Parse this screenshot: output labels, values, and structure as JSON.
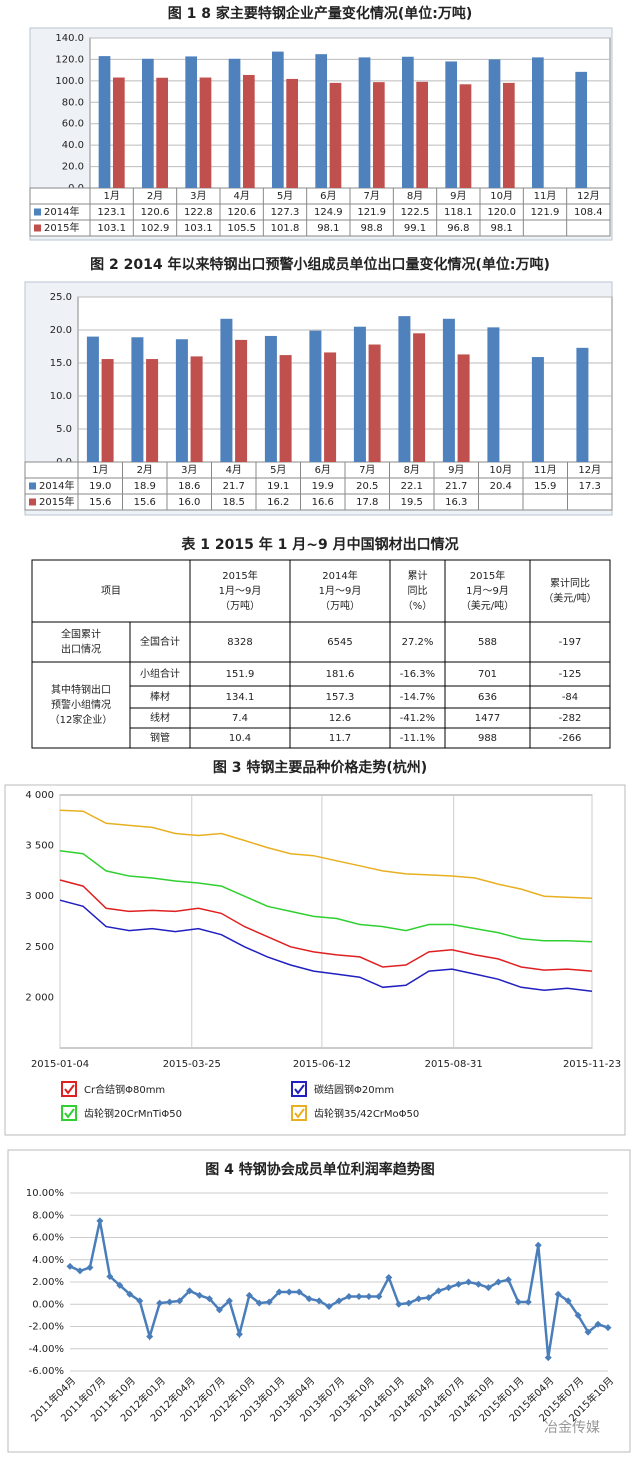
{
  "chart_data": [
    {
      "type": "bar",
      "title": "图 1 8 家主要特钢企业产量变化情况(单位:万吨)",
      "categories": [
        "1月",
        "2月",
        "3月",
        "4月",
        "5月",
        "6月",
        "7月",
        "8月",
        "9月",
        "10月",
        "11月",
        "12月"
      ],
      "series": [
        {
          "name": "2014年",
          "color": "#4f81bd",
          "values": [
            123.1,
            120.6,
            122.8,
            120.6,
            127.3,
            124.9,
            121.9,
            122.5,
            118.1,
            120.0,
            121.9,
            108.4
          ],
          "value_labels": [
            "123.1",
            "120.6",
            "122.8",
            "120.6",
            "127.3",
            "124.9",
            "121.9",
            "122.5",
            "118.1",
            "120.0",
            "121.9",
            "108.4"
          ]
        },
        {
          "name": "2015年",
          "color": "#c0504d",
          "values": [
            103.1,
            102.9,
            103.1,
            105.5,
            101.8,
            98.1,
            98.8,
            99.1,
            96.8,
            98.1,
            null,
            null
          ],
          "value_labels": [
            "103.1",
            "102.9",
            "103.1",
            "105.5",
            "101.8",
            "98.1",
            "98.8",
            "99.1",
            "96.8",
            "98.1",
            null,
            null
          ]
        }
      ],
      "ylim": [
        0,
        140
      ],
      "yticks": [
        {
          "value": 0,
          "label": "0.0"
        },
        {
          "value": 20,
          "label": "20.0"
        },
        {
          "value": 40,
          "label": "40.0"
        },
        {
          "value": 60,
          "label": "60.0"
        },
        {
          "value": 80,
          "label": "80.0"
        },
        {
          "value": 100,
          "label": "100.0"
        },
        {
          "value": 120,
          "label": "120.0"
        },
        {
          "value": 140,
          "label": "140.0"
        }
      ],
      "grid": true
    },
    {
      "type": "bar",
      "title": "图 2 2014 年以来特钢出口预警小组成员单位出口量变化情况(单位:万吨)",
      "categories": [
        "1月",
        "2月",
        "3月",
        "4月",
        "5月",
        "6月",
        "7月",
        "8月",
        "9月",
        "10月",
        "11月",
        "12月"
      ],
      "series": [
        {
          "name": "2014年",
          "color": "#4f81bd",
          "values": [
            19.0,
            18.9,
            18.6,
            21.7,
            19.1,
            19.9,
            20.5,
            22.1,
            21.7,
            20.4,
            15.9,
            17.3
          ],
          "value_labels": [
            "19.0",
            "18.9",
            "18.6",
            "21.7",
            "19.1",
            "19.9",
            "20.5",
            "22.1",
            "21.7",
            "20.4",
            "15.9",
            "17.3"
          ]
        },
        {
          "name": "2015年",
          "color": "#c0504d",
          "values": [
            15.6,
            15.6,
            16.0,
            18.5,
            16.2,
            16.6,
            17.8,
            19.5,
            16.3,
            null,
            null,
            null
          ],
          "value_labels": [
            "15.6",
            "15.6",
            "16.0",
            "18.5",
            "16.2",
            "16.6",
            "17.8",
            "19.5",
            "16.3",
            null,
            null,
            null
          ]
        }
      ],
      "ylim": [
        0,
        25
      ],
      "yticks": [
        {
          "value": 0,
          "label": "0.0"
        },
        {
          "value": 5,
          "label": "5.0"
        },
        {
          "value": 10,
          "label": "10.0"
        },
        {
          "value": 15,
          "label": "15.0"
        },
        {
          "value": 20,
          "label": "20.0"
        },
        {
          "value": 25,
          "label": "25.0"
        }
      ],
      "grid": true
    },
    {
      "type": "line",
      "title": "图 3 特钢主要品种价格走势(杭州)",
      "x": [
        "2015-01-04",
        "2015-01-18",
        "2015-02-01",
        "2015-02-15",
        "2015-03-01",
        "2015-03-15",
        "2015-03-29",
        "2015-04-12",
        "2015-04-26",
        "2015-05-10",
        "2015-05-24",
        "2015-06-07",
        "2015-06-21",
        "2015-07-05",
        "2015-07-19",
        "2015-08-02",
        "2015-08-16",
        "2015-08-30",
        "2015-09-13",
        "2015-09-27",
        "2015-10-11",
        "2015-10-25",
        "2015-11-08",
        "2015-11-23"
      ],
      "series": [
        {
          "name": "Cr合结钢Φ80mm",
          "color": "#e02020",
          "values": [
            3160,
            3100,
            2880,
            2850,
            2860,
            2850,
            2880,
            2830,
            2700,
            2600,
            2500,
            2450,
            2420,
            2400,
            2300,
            2320,
            2450,
            2470,
            2420,
            2380,
            2300,
            2270,
            2280,
            2260
          ]
        },
        {
          "name": "碳结圆钢Φ20mm",
          "color": "#2020c0",
          "values": [
            2960,
            2900,
            2700,
            2660,
            2680,
            2650,
            2680,
            2620,
            2500,
            2400,
            2320,
            2260,
            2230,
            2200,
            2100,
            2120,
            2260,
            2280,
            2230,
            2180,
            2100,
            2070,
            2090,
            2060
          ]
        },
        {
          "name": "齿轮钢20CrMnTiΦ50",
          "color": "#30d030",
          "values": [
            3450,
            3420,
            3250,
            3200,
            3180,
            3150,
            3130,
            3100,
            3000,
            2900,
            2850,
            2800,
            2780,
            2720,
            2700,
            2660,
            2720,
            2720,
            2680,
            2640,
            2580,
            2560,
            2560,
            2550
          ]
        },
        {
          "name": "齿轮钢35/42CrMoΦ50",
          "color": "#e8b020",
          "values": [
            3850,
            3840,
            3720,
            3700,
            3680,
            3620,
            3600,
            3620,
            3550,
            3480,
            3420,
            3400,
            3350,
            3300,
            3250,
            3220,
            3210,
            3200,
            3180,
            3120,
            3070,
            3000,
            2990,
            2980
          ]
        }
      ],
      "xlim": [
        "2015-01-04",
        "2015-11-23"
      ],
      "xticks": [
        "2015-01-04",
        "2015-03-25",
        "2015-06-12",
        "2015-08-31",
        "2015-11-23"
      ],
      "ylim": [
        1500,
        4000
      ],
      "yticks": [
        {
          "value": 2000,
          "label": "2 000"
        },
        {
          "value": 2500,
          "label": "2 500"
        },
        {
          "value": 3000,
          "label": "3 000"
        },
        {
          "value": 3500,
          "label": "3 500"
        },
        {
          "value": 4000,
          "label": "4 000"
        }
      ],
      "grid": "x"
    },
    {
      "type": "line",
      "title": "图 4 特钢协会成员单位利润率趋势图",
      "categories": [
        "2011年04月",
        null,
        null,
        "2011年07月",
        null,
        null,
        "2011年10月",
        null,
        null,
        "2012年01月",
        null,
        null,
        "2012年04月",
        null,
        null,
        "2012年07月",
        null,
        null,
        "2012年10月",
        null,
        null,
        "2013年01月",
        null,
        null,
        "2013年04月",
        null,
        null,
        "2013年07月",
        null,
        null,
        "2013年10月",
        null,
        null,
        "2014年01月",
        null,
        null,
        "2014年04月",
        null,
        null,
        "2014年07月",
        null,
        null,
        "2014年10月",
        null,
        null,
        "2015年01月",
        null,
        null,
        "2015年04月",
        null,
        null,
        "2015年07月",
        null,
        null,
        "2015年10月"
      ],
      "series": [
        {
          "name": null,
          "color": "#4a7ebb",
          "values": [
            3.4,
            3.0,
            3.3,
            7.5,
            2.5,
            1.7,
            0.9,
            0.3,
            -2.9,
            0.1,
            0.2,
            0.3,
            1.2,
            0.8,
            0.5,
            -0.5,
            0.3,
            -2.7,
            0.8,
            0.1,
            0.2,
            1.1,
            1.1,
            1.1,
            0.5,
            0.3,
            -0.2,
            0.3,
            0.7,
            0.7,
            0.7,
            0.7,
            2.4,
            0.0,
            0.1,
            0.5,
            0.6,
            1.2,
            1.5,
            1.8,
            2.0,
            1.8,
            1.5,
            2.0,
            2.2,
            0.2,
            0.2,
            5.3,
            -4.8,
            0.9,
            0.3,
            -1.0,
            -2.5,
            -1.8,
            -2.1
          ]
        }
      ],
      "ylim": [
        -6,
        10
      ],
      "yticks": [
        {
          "value": -6,
          "label": "-6.00%"
        },
        {
          "value": -4,
          "label": "-4.00%"
        },
        {
          "value": -2,
          "label": "-2.00%"
        },
        {
          "value": 0,
          "label": "0.00%"
        },
        {
          "value": 2,
          "label": "2.00%"
        },
        {
          "value": 4,
          "label": "4.00%"
        },
        {
          "value": 6,
          "label": "6.00%"
        },
        {
          "value": 8,
          "label": "8.00%"
        },
        {
          "value": 10,
          "label": "10.00%"
        }
      ],
      "grid": "y",
      "markers": true
    }
  ],
  "table": {
    "title": "表 1 2015 年 1 月~9 月中国钢材出口情况",
    "header": {
      "item": "项目",
      "columns": [
        [
          "2015年",
          "1月～9月",
          "（万吨）"
        ],
        [
          "2014年",
          "1月～9月",
          "（万吨）"
        ],
        [
          "累计",
          "同比",
          "（%）"
        ],
        [
          "2015年",
          "1月～9月",
          "（美元/吨）"
        ],
        [
          "累计同比",
          "（美元/吨）"
        ]
      ]
    },
    "groups": [
      {
        "label": [
          "全国累计",
          "出口情况"
        ],
        "rows": [
          {
            "name": "全国合计",
            "cells": [
              "8328",
              "6545",
              "27.2%",
              "588",
              "-197"
            ]
          }
        ]
      },
      {
        "label": [
          "其中特钢出口",
          "预警小组情况",
          "（12家企业）"
        ],
        "rows": [
          {
            "name": "小组合计",
            "cells": [
              "151.9",
              "181.6",
              "-16.3%",
              "701",
              "-125"
            ]
          },
          {
            "name": "棒材",
            "cells": [
              "134.1",
              "157.3",
              "-14.7%",
              "636",
              "-84"
            ]
          },
          {
            "name": "线材",
            "cells": [
              "7.4",
              "12.6",
              "-41.2%",
              "1477",
              "-282"
            ]
          },
          {
            "name": "钢管",
            "cells": [
              "10.4",
              "11.7",
              "-11.1%",
              "988",
              "-266"
            ]
          }
        ]
      }
    ]
  },
  "watermark": "冶金传媒"
}
